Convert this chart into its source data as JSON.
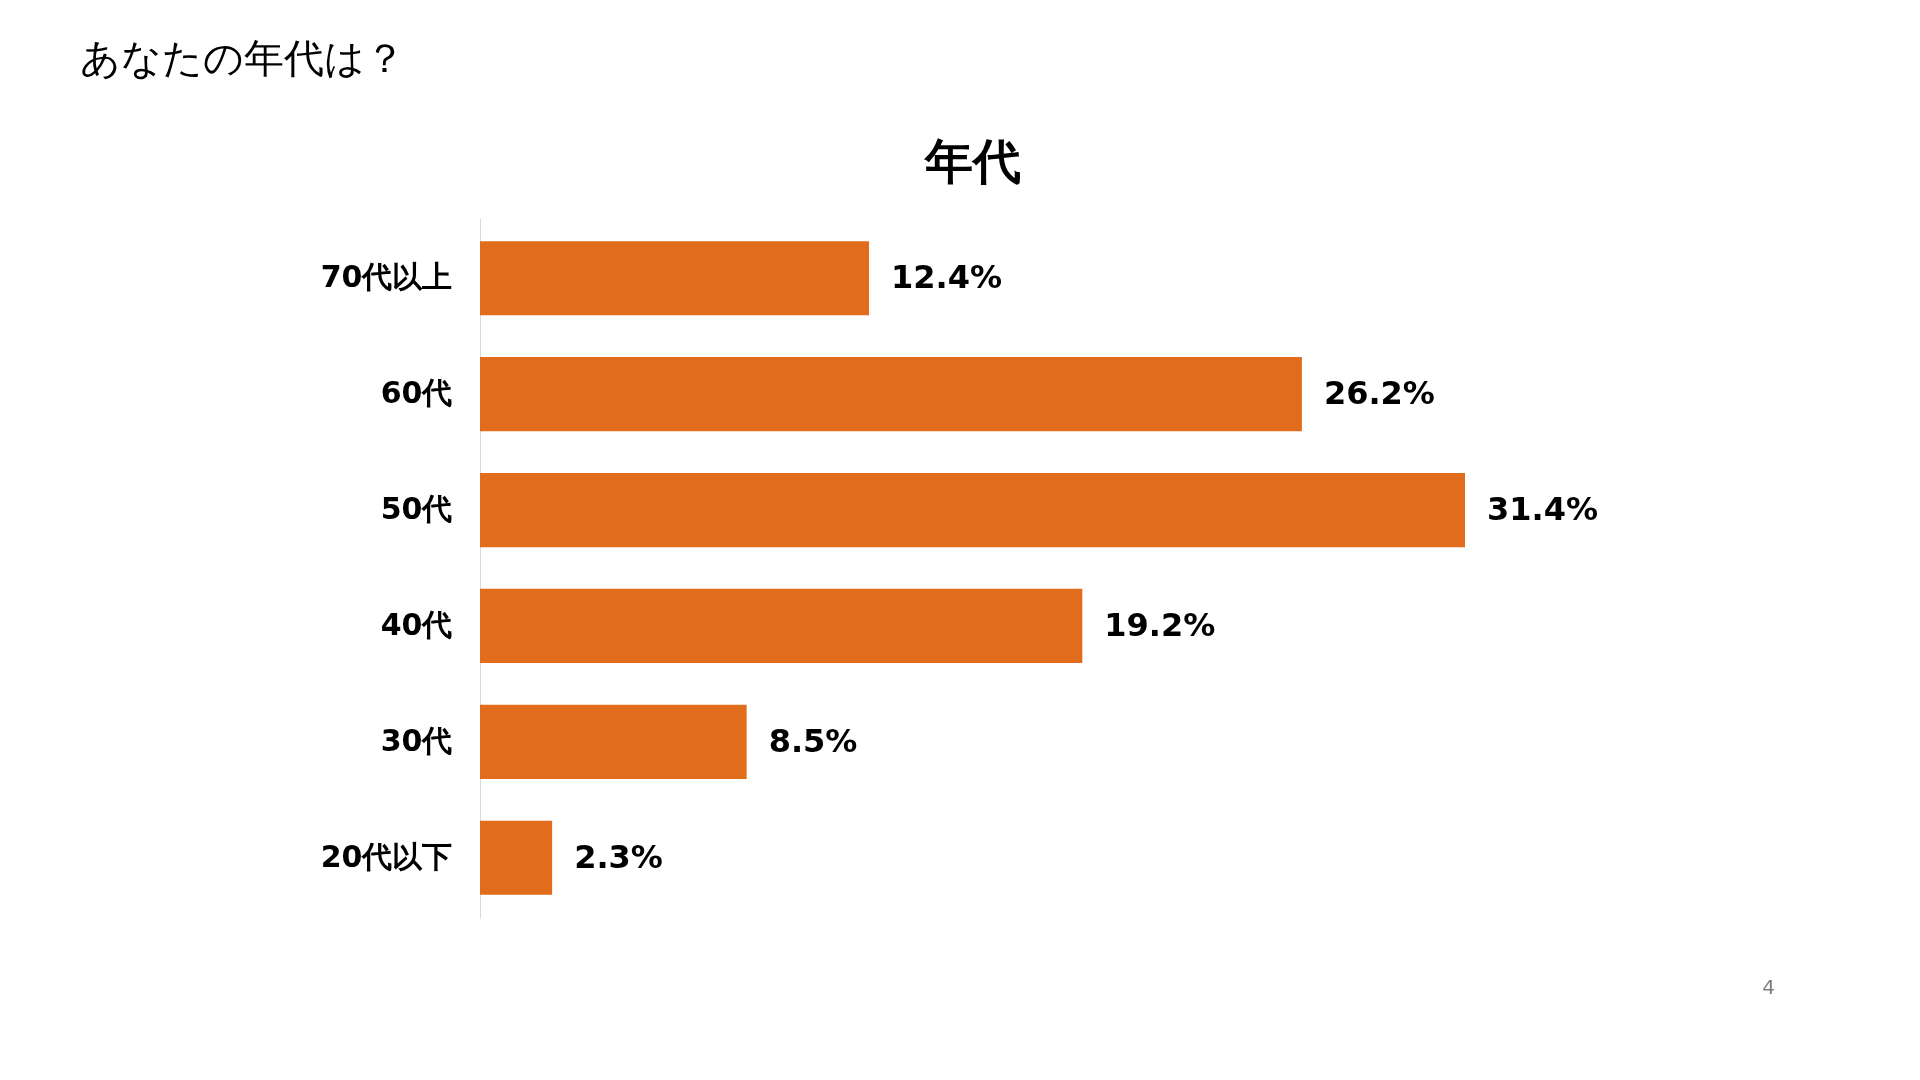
{
  "chart_data": {
    "type": "bar",
    "orientation": "horizontal",
    "title": "あなたの年代は？",
    "subtitle": "年代",
    "categories": [
      "70代以上",
      "60代",
      "50代",
      "40代",
      "30代",
      "20代以下"
    ],
    "values": [
      12.4,
      26.2,
      31.4,
      19.2,
      8.5,
      2.3
    ],
    "value_labels": [
      "12.4%",
      "26.2%",
      "31.4%",
      "19.2%",
      "8.5%",
      "2.3%"
    ],
    "color": "#e06c1c",
    "annotations": [
      "4"
    ]
  }
}
